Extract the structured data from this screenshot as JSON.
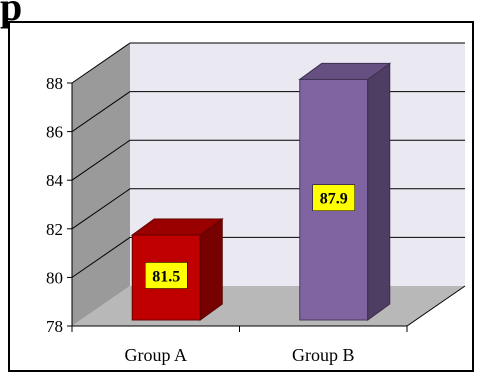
{
  "header_fragment": "p",
  "chart_data": {
    "type": "bar",
    "title": "",
    "xlabel": "",
    "ylabel": "",
    "categories": [
      "Group A",
      "Group B"
    ],
    "values": [
      81.5,
      87.9
    ],
    "data_labels": [
      "81.5",
      "87.9"
    ],
    "ylim": [
      78,
      88
    ],
    "yticks": [
      "78",
      "80",
      "82",
      "84",
      "86",
      "88"
    ],
    "grid": true,
    "legend": "none",
    "style": "3d",
    "colors": {
      "Group A": "#c00000",
      "Group B": "#8064a2",
      "label_background": "#ffff00",
      "back_wall": "#eae8f0",
      "side_wall": "#9a9a9a",
      "floor": "#b8b8b8"
    }
  }
}
